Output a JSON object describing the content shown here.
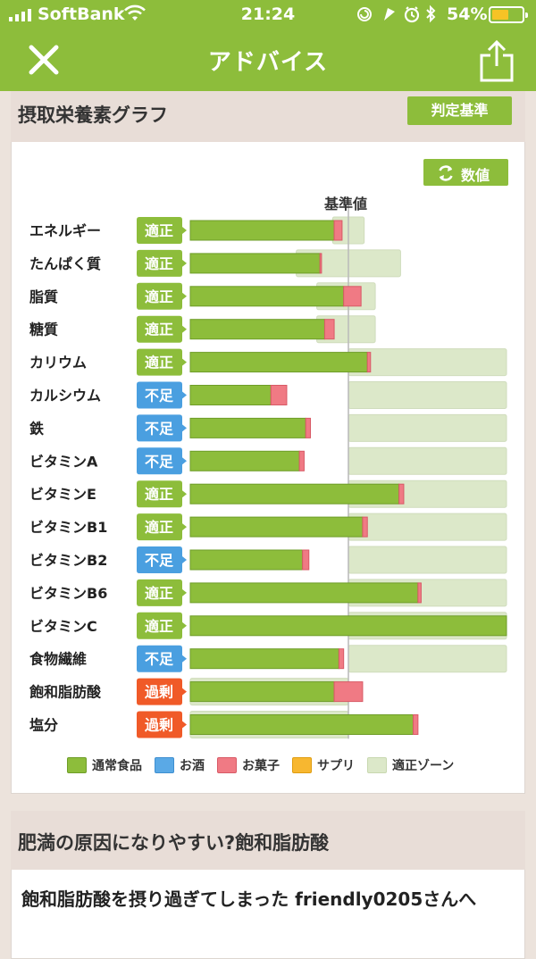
{
  "status_bar": {
    "carrier": "SoftBank",
    "time": "21:24",
    "battery": "54%",
    "battery_level": 0.54
  },
  "nav": {
    "title": "アドバイス",
    "close_icon": "close-icon",
    "share_icon": "share-icon"
  },
  "nutrition": {
    "title": "摂取栄養素グラフ",
    "criteria_button": "判定基準",
    "values_button": "数値",
    "reference_label": "基準値"
  },
  "colors": {
    "brand": "#8dbd3b",
    "food": "#8dbd3b",
    "alcohol": "#5aa9e6",
    "snack": "#f07a84",
    "supplement": "#f7b730",
    "zone": "#dce8c9",
    "status_ok": "#8dbd3b",
    "status_low": "#4a9fe0",
    "status_high": "#f05a28"
  },
  "chart_data": {
    "type": "bar",
    "orientation": "horizontal",
    "stacked": true,
    "reference_label": "基準値",
    "categories": [
      "エネルギー",
      "たんぱく質",
      "脂質",
      "糖質",
      "カリウム",
      "カルシウム",
      "鉄",
      "ビタミンA",
      "ビタミンE",
      "ビタミンB1",
      "ビタミンB2",
      "ビタミンB6",
      "ビタミンC",
      "食物繊維",
      "飽和脂肪酸",
      "塩分"
    ],
    "status": [
      "適正",
      "適正",
      "適正",
      "適正",
      "適正",
      "不足",
      "不足",
      "不足",
      "適正",
      "適正",
      "不足",
      "適正",
      "適正",
      "不足",
      "過剰",
      "過剰"
    ],
    "status_type": [
      "ok",
      "ok",
      "ok",
      "ok",
      "ok",
      "low",
      "low",
      "low",
      "ok",
      "ok",
      "low",
      "ok",
      "ok",
      "low",
      "high",
      "high"
    ],
    "series": [
      {
        "name": "通常食品",
        "values": [
          0.91,
          0.82,
          0.97,
          0.85,
          1.12,
          0.51,
          0.73,
          0.69,
          1.32,
          1.09,
          0.71,
          1.44,
          2.0,
          0.94,
          0.91,
          1.41
        ]
      },
      {
        "name": "お酒",
        "values": [
          0,
          0,
          0,
          0,
          0,
          0,
          0,
          0,
          0,
          0,
          0,
          0,
          0,
          0,
          0,
          0
        ]
      },
      {
        "name": "お菓子",
        "values": [
          0.05,
          0.01,
          0.11,
          0.06,
          0.02,
          0.1,
          0.03,
          0.03,
          0.03,
          0.03,
          0.04,
          0.02,
          0,
          0.03,
          0.18,
          0.03
        ]
      },
      {
        "name": "サプリ",
        "values": [
          0,
          0,
          0,
          0,
          0,
          0,
          0,
          0,
          0,
          0,
          0,
          0,
          0,
          0,
          0,
          0
        ]
      }
    ],
    "appropriate_zone": [
      [
        0.9,
        1.1
      ],
      [
        0.67,
        1.33
      ],
      [
        0.8,
        1.17
      ],
      [
        0.8,
        1.17
      ],
      [
        1.0,
        2.0
      ],
      [
        1.0,
        2.0
      ],
      [
        1.0,
        2.0
      ],
      [
        1.0,
        2.0
      ],
      [
        1.0,
        2.0
      ],
      [
        1.0,
        2.0
      ],
      [
        1.0,
        2.0
      ],
      [
        1.0,
        2.0
      ],
      [
        1.0,
        2.0
      ],
      [
        1.0,
        2.0
      ],
      [
        0,
        1.0
      ],
      [
        0,
        1.0
      ]
    ],
    "legend": [
      "通常食品",
      "お酒",
      "お菓子",
      "サプリ",
      "適正ゾーン"
    ],
    "legend_placement": "bottom"
  },
  "article": {
    "title": "肥満の原因になりやすい?飽和脂肪酸",
    "body": "飽和脂肪酸を摂り過ぎてしまった friendly0205さんへ"
  }
}
